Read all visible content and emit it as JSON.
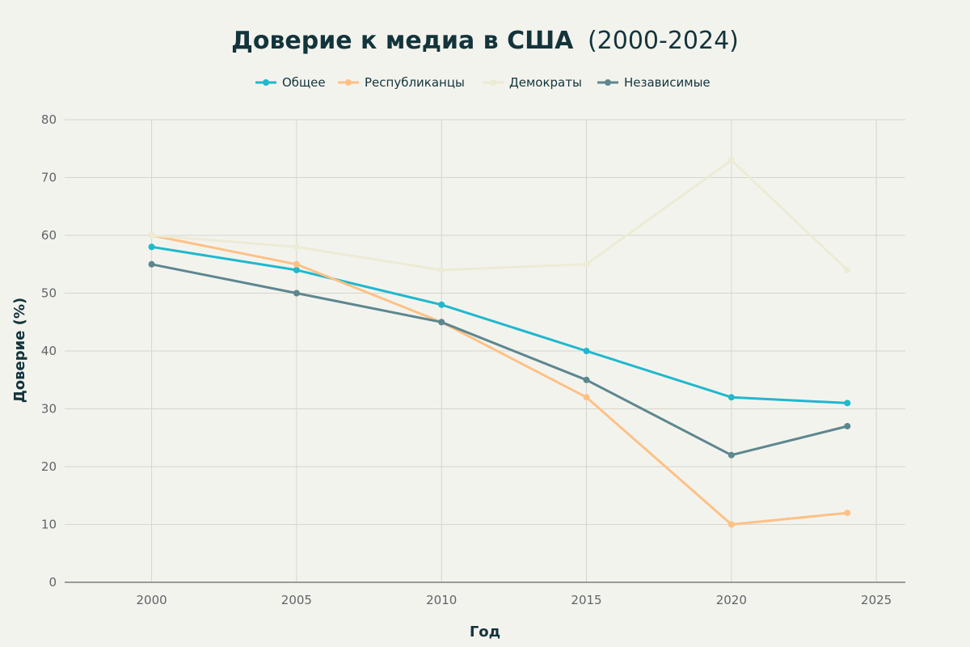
{
  "chart_data": {
    "type": "line",
    "title": "Доверие к медиа в США",
    "subtitle": "(2000-2024)",
    "xlabel": "Год",
    "ylabel": "Доверие (%)",
    "xlim": [
      1997,
      2026
    ],
    "ylim": [
      0,
      80
    ],
    "x_ticks": [
      2000,
      2005,
      2010,
      2015,
      2020,
      2025
    ],
    "y_ticks": [
      0,
      10,
      20,
      30,
      40,
      50,
      60,
      70,
      80
    ],
    "grid": true,
    "legend_position": "top-center",
    "x": [
      2000,
      2005,
      2010,
      2015,
      2020,
      2024
    ],
    "series": [
      {
        "name": "Общее",
        "color": "#1fb8cd",
        "values": [
          58,
          54,
          48,
          40,
          32,
          31
        ]
      },
      {
        "name": "Республиканцы",
        "color": "#ffc185",
        "values": [
          60,
          55,
          45,
          32,
          10,
          12
        ]
      },
      {
        "name": "Демократы",
        "color": "#ecebd5",
        "values": [
          60,
          58,
          54,
          55,
          73,
          54
        ]
      },
      {
        "name": "Независимые",
        "color": "#5d878f",
        "values": [
          55,
          50,
          45,
          35,
          22,
          27
        ]
      }
    ]
  }
}
